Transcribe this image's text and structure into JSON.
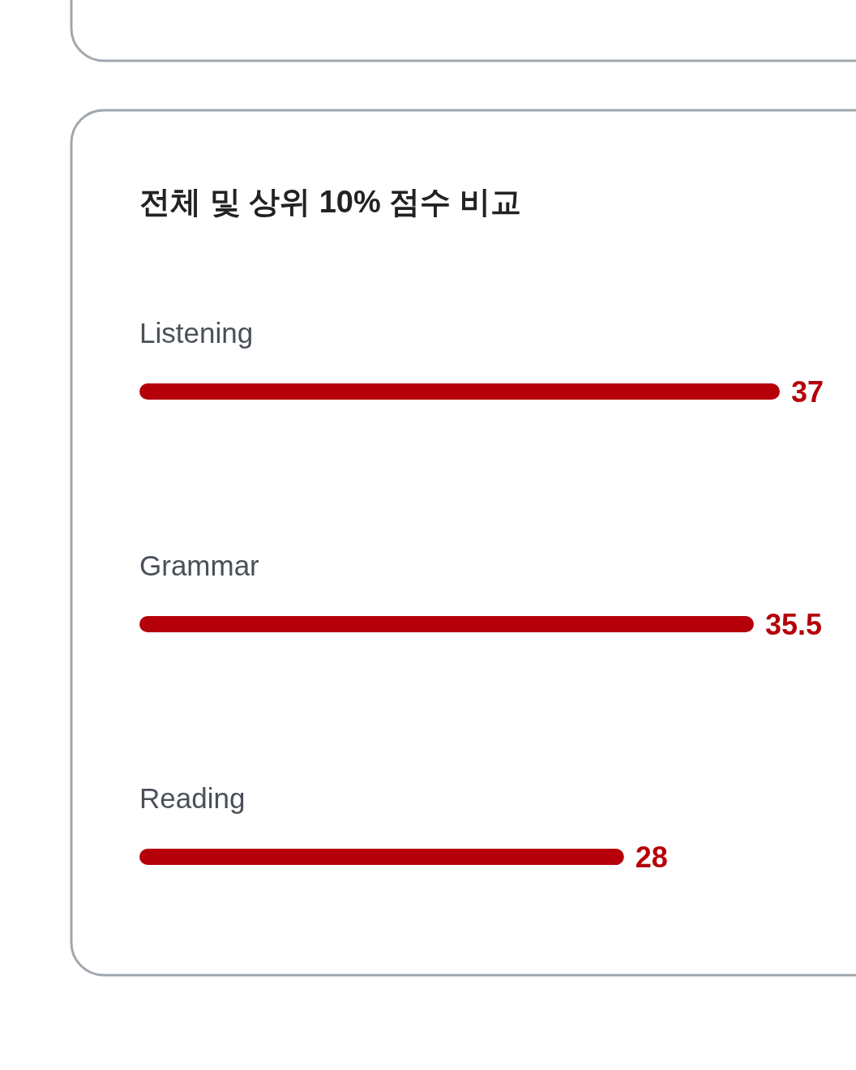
{
  "chart_data": {
    "type": "bar",
    "orientation": "horizontal",
    "title": "전체 및 상위 10% 점수 비교",
    "categories": [
      "Listening",
      "Grammar",
      "Reading"
    ],
    "values": [
      37,
      35.5,
      28
    ],
    "color": "#b5000a",
    "data_labels": true
  }
}
